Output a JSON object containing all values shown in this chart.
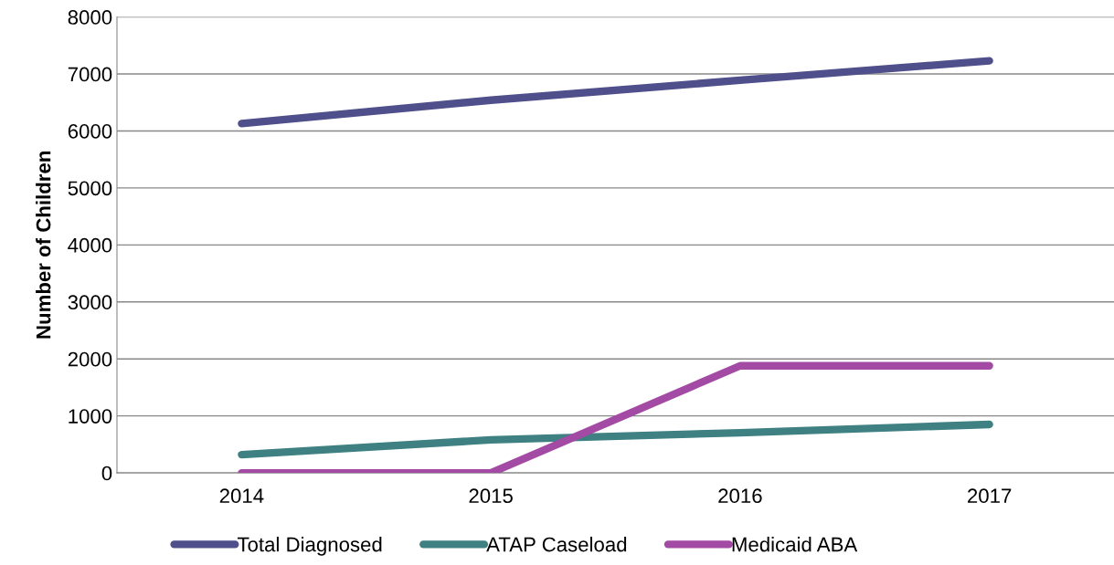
{
  "chart_data": {
    "type": "line",
    "ylabel": "Number of Children",
    "categories": [
      "2014",
      "2015",
      "2016",
      "2017"
    ],
    "series": [
      {
        "name": "Total Diagnosed",
        "color": "#4f4f8c",
        "values": [
          6130,
          6540,
          6890,
          7230
        ]
      },
      {
        "name": "ATAP Caseload",
        "color": "#3f8082",
        "values": [
          320,
          580,
          705,
          850
        ]
      },
      {
        "name": "Medicaid ABA",
        "color": "#a24aa4",
        "values": [
          0,
          0,
          1880,
          1880
        ]
      }
    ],
    "ylim": [
      0,
      8000
    ],
    "yticks": [
      0,
      1000,
      2000,
      3000,
      4000,
      5000,
      6000,
      7000,
      8000
    ],
    "grid": "y",
    "legend": "bottom",
    "marker": "none",
    "line_style": "solid"
  }
}
